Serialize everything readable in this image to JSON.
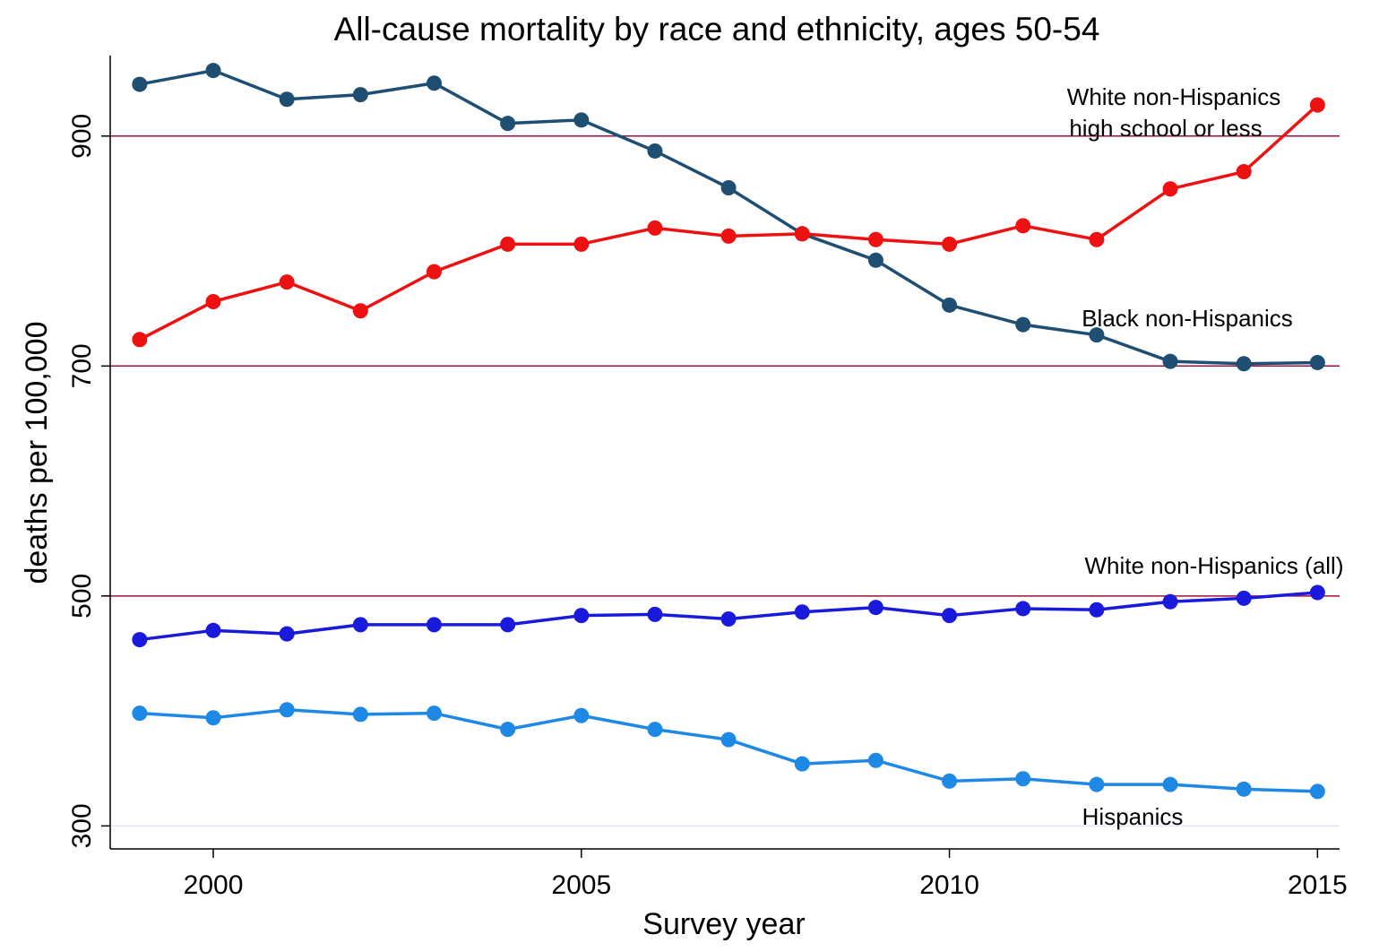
{
  "chart_data": {
    "type": "line",
    "title": "All-cause mortality by race and ethnicity, ages 50-54",
    "xlabel": "Survey year",
    "ylabel": "deaths per 100,000",
    "xlim": [
      1998.6,
      2015.3
    ],
    "ylim": [
      280,
      970
    ],
    "x_ticks": [
      2000,
      2005,
      2010,
      2015
    ],
    "y_ticks": [
      300,
      500,
      700,
      900
    ],
    "reference_lines": [
      500,
      700,
      900
    ],
    "reference_line_color": "#a0103c",
    "x": [
      1999,
      2000,
      2001,
      2002,
      2003,
      2004,
      2005,
      2006,
      2007,
      2008,
      2009,
      2010,
      2011,
      2012,
      2013,
      2014,
      2015
    ],
    "series": [
      {
        "name": "Black non-Hispanics",
        "color": "#1f4e73",
        "values": [
          945,
          957,
          932,
          936,
          946,
          911,
          914,
          887,
          855,
          815,
          792,
          753,
          736,
          727,
          704,
          702,
          703
        ]
      },
      {
        "name": "White non-Hispanics high school or less",
        "label_lines": [
          "White non-Hispanics",
          "high school or less"
        ],
        "color": "#ee1111",
        "values": [
          723,
          756,
          773,
          748,
          782,
          806,
          806,
          820,
          813,
          815,
          810,
          806,
          822,
          810,
          854,
          869,
          927
        ]
      },
      {
        "name": "White non-Hispanics (all)",
        "color": "#1a1adc",
        "values": [
          462,
          470,
          467,
          475,
          475,
          475,
          483,
          484,
          480,
          486,
          490,
          483,
          489,
          488,
          495,
          498,
          503
        ]
      },
      {
        "name": "Hispanics",
        "color": "#1e88e5",
        "values": [
          398,
          394,
          401,
          397,
          398,
          384,
          396,
          384,
          375,
          354,
          357,
          339,
          341,
          336,
          336,
          332,
          330
        ]
      }
    ],
    "grid": false,
    "legend": "inline labels"
  }
}
